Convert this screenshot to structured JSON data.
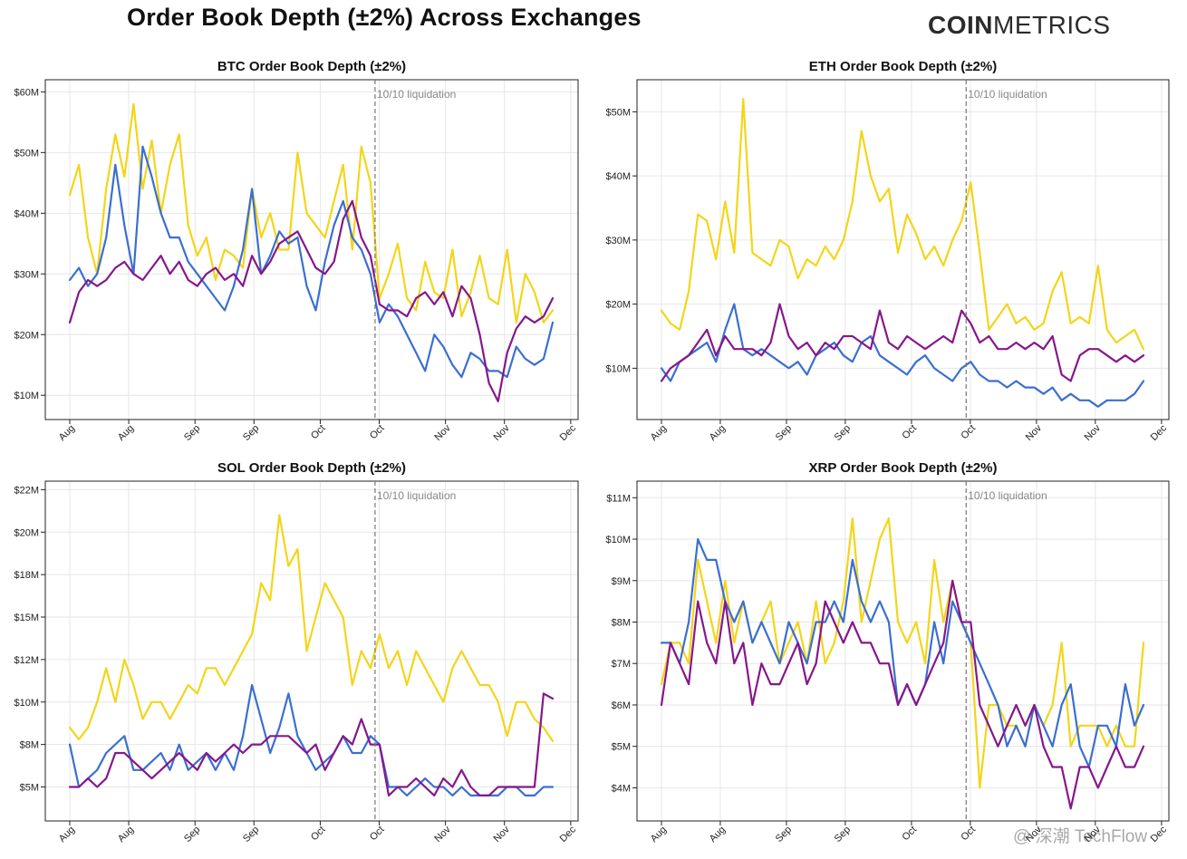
{
  "header": {
    "title": "Order Book Depth (±2%) Across Exchanges",
    "brand_bold": "COIN",
    "brand_light": "METRICS",
    "watermark": "@ 深潮 TechFlow"
  },
  "colors": {
    "yellow_series": "#f3d51a",
    "blue_series": "#3a6fd0",
    "purple_series": "#86178a",
    "vline": "#777777",
    "grid": "#e6e6e6"
  },
  "chart_data": [
    {
      "type": "line",
      "title": "BTC Order Book Depth (±2%)",
      "xlabel": "",
      "ylabel": "",
      "x_tick_labels": [
        "Aug",
        "Aug",
        "Sep",
        "Sep",
        "Oct",
        "Oct",
        "Nov",
        "Nov",
        "Dec"
      ],
      "x_range": [
        -1,
        56
      ],
      "y_ticks": [
        10,
        20,
        30,
        40,
        50,
        60
      ],
      "y_tick_labels": [
        "$10M",
        "$20M",
        "$30M",
        "$40M",
        "$50M",
        "$60M"
      ],
      "ylim": [
        6,
        62
      ],
      "grid": true,
      "annotation": {
        "label": "10/10 liquidation",
        "x": 33.5
      },
      "series": [
        {
          "color_key": "yellow_series",
          "values": [
            43,
            48,
            36,
            30,
            44,
            53,
            46,
            58,
            44,
            52,
            40,
            48,
            53,
            38,
            33,
            36,
            29,
            34,
            33,
            31,
            44,
            36,
            40,
            34,
            34,
            50,
            40,
            38,
            36,
            42,
            48,
            34,
            51,
            45,
            26,
            30,
            35,
            26,
            24,
            32,
            27,
            26,
            34,
            23,
            27,
            33,
            26,
            25,
            34,
            22,
            30,
            27,
            22,
            24
          ]
        },
        {
          "color_key": "blue_series",
          "values": [
            29,
            31,
            28,
            30,
            36,
            48,
            38,
            30,
            51,
            46,
            40,
            36,
            36,
            32,
            30,
            28,
            26,
            24,
            28,
            34,
            44,
            30,
            33,
            37,
            35,
            36,
            28,
            24,
            32,
            38,
            42,
            36,
            34,
            30,
            22,
            25,
            23,
            20,
            17,
            14,
            20,
            18,
            15,
            13,
            17,
            16,
            14,
            14,
            13,
            18,
            16,
            15,
            16,
            22
          ]
        },
        {
          "color_key": "purple_series",
          "values": [
            22,
            27,
            29,
            28,
            29,
            31,
            32,
            30,
            29,
            31,
            33,
            30,
            32,
            29,
            28,
            30,
            31,
            29,
            30,
            28,
            33,
            30,
            32,
            35,
            36,
            37,
            34,
            31,
            30,
            32,
            39,
            42,
            36,
            33,
            25,
            24,
            24,
            23,
            26,
            27,
            25,
            27,
            23,
            28,
            26,
            20,
            12,
            9,
            17,
            21,
            23,
            22,
            23,
            26
          ]
        }
      ]
    },
    {
      "type": "line",
      "title": "ETH Order Book Depth (±2%)",
      "xlabel": "",
      "ylabel": "",
      "x_tick_labels": [
        "Aug",
        "Aug",
        "Sep",
        "Sep",
        "Oct",
        "Oct",
        "Nov",
        "Nov",
        "Dec"
      ],
      "x_range": [
        -1,
        56
      ],
      "y_ticks": [
        10,
        20,
        30,
        40,
        50
      ],
      "y_tick_labels": [
        "$10M",
        "$20M",
        "$30M",
        "$40M",
        "$50M"
      ],
      "ylim": [
        2,
        55
      ],
      "grid": true,
      "annotation": {
        "label": "10/10 liquidation",
        "x": 33.5
      },
      "series": [
        {
          "color_key": "yellow_series",
          "values": [
            19,
            17,
            16,
            22,
            34,
            33,
            27,
            36,
            28,
            52,
            28,
            27,
            26,
            30,
            29,
            24,
            27,
            26,
            29,
            27,
            30,
            36,
            47,
            40,
            36,
            38,
            28,
            34,
            31,
            27,
            29,
            26,
            30,
            33,
            39,
            28,
            16,
            18,
            20,
            17,
            18,
            16,
            17,
            22,
            25,
            17,
            18,
            17,
            26,
            16,
            14,
            15,
            16,
            13
          ]
        },
        {
          "color_key": "blue_series",
          "values": [
            10,
            8,
            11,
            12,
            13,
            14,
            11,
            16,
            20,
            13,
            12,
            13,
            12,
            11,
            10,
            11,
            9,
            12,
            13,
            14,
            12,
            11,
            14,
            15,
            12,
            11,
            10,
            9,
            11,
            12,
            10,
            9,
            8,
            10,
            11,
            9,
            8,
            8,
            7,
            8,
            7,
            7,
            6,
            7,
            5,
            6,
            5,
            5,
            4,
            5,
            5,
            5,
            6,
            8
          ]
        },
        {
          "color_key": "purple_series",
          "values": [
            8,
            10,
            11,
            12,
            14,
            16,
            12,
            15,
            13,
            13,
            13,
            12,
            14,
            20,
            15,
            13,
            14,
            12,
            14,
            13,
            15,
            15,
            14,
            13,
            19,
            14,
            13,
            15,
            14,
            13,
            14,
            15,
            14,
            19,
            17,
            14,
            15,
            13,
            13,
            14,
            13,
            14,
            13,
            15,
            9,
            8,
            12,
            13,
            13,
            12,
            11,
            12,
            11,
            12
          ]
        }
      ]
    },
    {
      "type": "line",
      "title": "SOL Order Book Depth (±2%)",
      "xlabel": "",
      "ylabel": "",
      "x_tick_labels": [
        "Aug",
        "Aug",
        "Sep",
        "Sep",
        "Oct",
        "Oct",
        "Nov",
        "Nov",
        "Dec"
      ],
      "x_range": [
        -1,
        56
      ],
      "y_ticks": [
        5,
        7.5,
        10,
        12.5,
        15,
        17.5,
        20,
        22.5
      ],
      "y_tick_labels": [
        "$5M",
        "$8M",
        "$10M",
        "$12M",
        "$15M",
        "$18M",
        "$20M",
        "$22M"
      ],
      "ylim": [
        3,
        23
      ],
      "grid": true,
      "annotation": {
        "label": "10/10 liquidation",
        "x": 33.5
      },
      "series": [
        {
          "color_key": "yellow_series",
          "values": [
            8.5,
            7.8,
            8.5,
            10,
            12,
            10,
            12.5,
            11,
            9,
            10,
            10,
            9,
            10,
            11,
            10.5,
            12,
            12,
            11,
            12,
            13,
            14,
            17,
            16,
            21,
            18,
            19,
            13,
            15,
            17,
            16,
            15,
            11,
            13,
            12,
            14,
            12,
            13,
            11,
            13,
            12,
            11,
            10,
            12,
            13,
            12,
            11,
            11,
            10,
            8,
            10,
            10,
            9,
            8.5,
            7.7
          ]
        },
        {
          "color_key": "blue_series",
          "values": [
            7.5,
            5,
            5.5,
            6,
            7,
            7.5,
            8,
            6,
            6,
            6.5,
            7,
            6,
            7.5,
            6,
            6.5,
            7,
            6,
            7,
            6,
            8,
            11,
            9,
            7,
            8.5,
            10.5,
            8,
            7,
            6,
            6.5,
            7,
            8,
            7,
            7,
            8,
            7.5,
            5,
            5,
            4.5,
            5,
            5.5,
            5,
            5,
            4.5,
            5,
            4.5,
            4.5,
            4.5,
            4.5,
            5,
            5,
            4.5,
            4.5,
            5,
            5
          ]
        },
        {
          "color_key": "purple_series",
          "values": [
            5,
            5,
            5.5,
            5,
            5.5,
            7,
            7,
            6.5,
            6,
            5.5,
            6,
            6.5,
            7,
            6.5,
            6,
            7,
            6.5,
            7,
            7.5,
            7,
            7.5,
            7.5,
            8,
            8,
            8,
            7.5,
            7,
            7.5,
            6,
            7,
            8,
            7.5,
            9,
            7.5,
            7.5,
            4.5,
            5,
            5,
            5.5,
            5,
            4.5,
            5.5,
            5,
            6,
            5,
            4.5,
            4.5,
            5,
            5,
            5,
            5,
            5,
            10.5,
            10.2
          ]
        }
      ]
    },
    {
      "type": "line",
      "title": "XRP Order Book Depth (±2%)",
      "xlabel": "",
      "ylabel": "",
      "x_tick_labels": [
        "Aug",
        "Aug",
        "Sep",
        "Sep",
        "Oct",
        "Oct",
        "Nov",
        "Nov",
        "Dec"
      ],
      "x_range": [
        -1,
        56
      ],
      "y_ticks": [
        4,
        5,
        6,
        7,
        8,
        9,
        10,
        11
      ],
      "y_tick_labels": [
        "$4M",
        "$5M",
        "$6M",
        "$7M",
        "$8M",
        "$9M",
        "$10M",
        "$11M"
      ],
      "ylim": [
        3.2,
        11.4
      ],
      "grid": true,
      "annotation": {
        "label": "10/10 liquidation",
        "x": 33.5
      },
      "series": [
        {
          "color_key": "yellow_series",
          "values": [
            6.5,
            7.5,
            7.5,
            7,
            9.5,
            8.5,
            7.5,
            9,
            7.5,
            8.5,
            7.5,
            8,
            8.5,
            7,
            7.5,
            8,
            7,
            8.5,
            7,
            7.5,
            8.5,
            10.5,
            8,
            9,
            10,
            10.5,
            8,
            7.5,
            8,
            7,
            9.5,
            8,
            9,
            8,
            7.5,
            4,
            6,
            6,
            5.5,
            5.5,
            5,
            6,
            5.5,
            6,
            7.5,
            5,
            5.5,
            5.5,
            5.5,
            5,
            5.5,
            5,
            5,
            7.5
          ]
        },
        {
          "color_key": "blue_series",
          "values": [
            7.5,
            7.5,
            7,
            8,
            10,
            9.5,
            9.5,
            8.5,
            8,
            8.5,
            7.5,
            8,
            7.5,
            7,
            8,
            7.5,
            7,
            8,
            8,
            8.5,
            8,
            9.5,
            8.5,
            8,
            8.5,
            8,
            6,
            6.5,
            6,
            6.5,
            8,
            7,
            8.5,
            8,
            7.5,
            7,
            6.5,
            6,
            5,
            5.5,
            5,
            6,
            5.5,
            5,
            6,
            6.5,
            5,
            4.5,
            5.5,
            5.5,
            5,
            6.5,
            5.5,
            6
          ]
        },
        {
          "color_key": "purple_series",
          "values": [
            6,
            7.5,
            7,
            6.5,
            8.5,
            7.5,
            7,
            8.5,
            7,
            7.5,
            6,
            7,
            6.5,
            6.5,
            7,
            7.5,
            6.5,
            7,
            8.5,
            8,
            7.5,
            8,
            7.5,
            7.5,
            7,
            7,
            6,
            6.5,
            6,
            6.5,
            7,
            7.5,
            9,
            8,
            8,
            6,
            5.5,
            5,
            5.5,
            6,
            5.5,
            6,
            5,
            4.5,
            4.5,
            3.5,
            4.5,
            4.5,
            4,
            4.5,
            5,
            4.5,
            4.5,
            5
          ]
        }
      ]
    }
  ]
}
